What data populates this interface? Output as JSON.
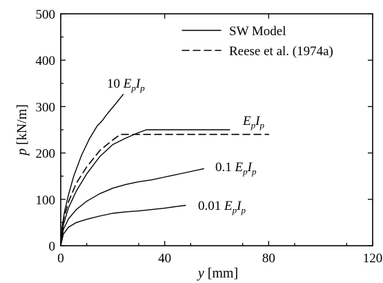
{
  "chart_data": {
    "type": "line",
    "xlabel_italic": "y",
    "xlabel_unit": " [mm]",
    "ylabel_italic": "p",
    "ylabel_unit": " [kN/m]",
    "xlim": [
      0,
      120
    ],
    "ylim": [
      0,
      500
    ],
    "xticks": [
      0,
      40,
      80,
      120
    ],
    "yticks": [
      0,
      100,
      200,
      300,
      400,
      500
    ],
    "grid": false,
    "legend_position": "top-right",
    "legend": [
      {
        "label": "SW Model",
        "style": "solid"
      },
      {
        "label": "Reese et al. (1974a)",
        "style": "dashed"
      }
    ],
    "series": [
      {
        "label_prefix": "10 ",
        "style": "solid",
        "points": [
          [
            0,
            0
          ],
          [
            0.5,
            40
          ],
          [
            1.5,
            75
          ],
          [
            3,
            110
          ],
          [
            5,
            150
          ],
          [
            8,
            195
          ],
          [
            11,
            230
          ],
          [
            14,
            258
          ],
          [
            16,
            270
          ],
          [
            18,
            285
          ],
          [
            21,
            305
          ],
          [
            24,
            326
          ]
        ]
      },
      {
        "label_prefix": "",
        "style": "solid",
        "points": [
          [
            0,
            0
          ],
          [
            1,
            45
          ],
          [
            3,
            82
          ],
          [
            6,
            118
          ],
          [
            10,
            155
          ],
          [
            15,
            192
          ],
          [
            20,
            218
          ],
          [
            25,
            232
          ],
          [
            30,
            244
          ],
          [
            33,
            250
          ],
          [
            50,
            250
          ],
          [
            65,
            250
          ]
        ]
      },
      {
        "label_prefix": "0.1 ",
        "style": "solid",
        "points": [
          [
            0,
            0
          ],
          [
            1,
            35
          ],
          [
            3,
            58
          ],
          [
            6,
            78
          ],
          [
            10,
            96
          ],
          [
            15,
            112
          ],
          [
            20,
            124
          ],
          [
            25,
            132
          ],
          [
            30,
            138
          ],
          [
            35,
            142
          ],
          [
            40,
            148
          ],
          [
            45,
            154
          ],
          [
            50,
            160
          ],
          [
            55,
            166
          ]
        ]
      },
      {
        "label_prefix": "0.01 ",
        "style": "solid",
        "points": [
          [
            0,
            0
          ],
          [
            1,
            25
          ],
          [
            3,
            40
          ],
          [
            6,
            50
          ],
          [
            10,
            57
          ],
          [
            15,
            64
          ],
          [
            20,
            70
          ],
          [
            25,
            73
          ],
          [
            30,
            75
          ],
          [
            35,
            78
          ],
          [
            40,
            81
          ],
          [
            45,
            85
          ],
          [
            48,
            87
          ]
        ]
      },
      {
        "style": "dashed",
        "points": [
          [
            0,
            0
          ],
          [
            1,
            55
          ],
          [
            3,
            95
          ],
          [
            6,
            135
          ],
          [
            10,
            170
          ],
          [
            15,
            205
          ],
          [
            20,
            228
          ],
          [
            23,
            240
          ],
          [
            40,
            240
          ],
          [
            60,
            240
          ],
          [
            80,
            240
          ]
        ]
      }
    ]
  }
}
